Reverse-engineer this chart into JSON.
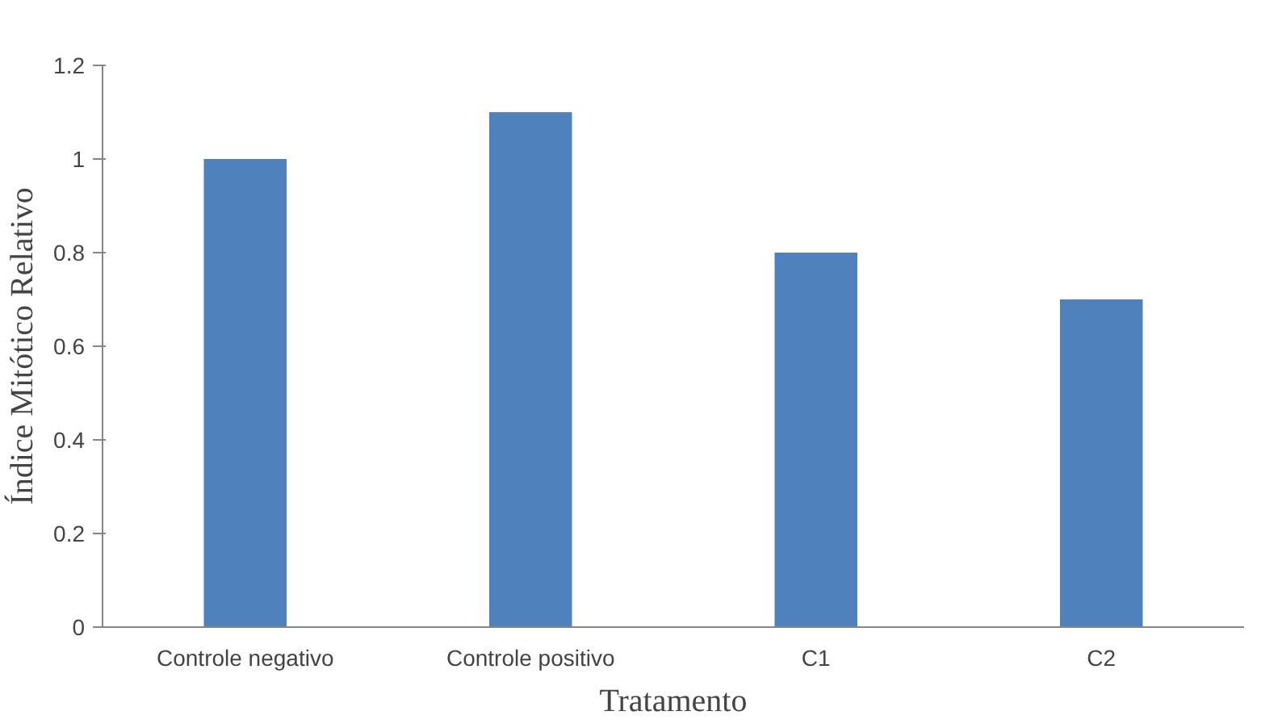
{
  "chart_data": {
    "type": "bar",
    "xlabel": "Tratamento",
    "ylabel": "Índice Mitótico Relativo",
    "categories": [
      "Controle negativo",
      "Controle positivo",
      "C1",
      "C2"
    ],
    "values": [
      1,
      1.1,
      0.8,
      0.7
    ],
    "color": "#4f81bd",
    "ylim": [
      0,
      1.2
    ],
    "yticks": [
      0,
      0.2,
      0.4,
      0.6,
      0.8,
      1,
      1.2
    ],
    "grid": false
  }
}
